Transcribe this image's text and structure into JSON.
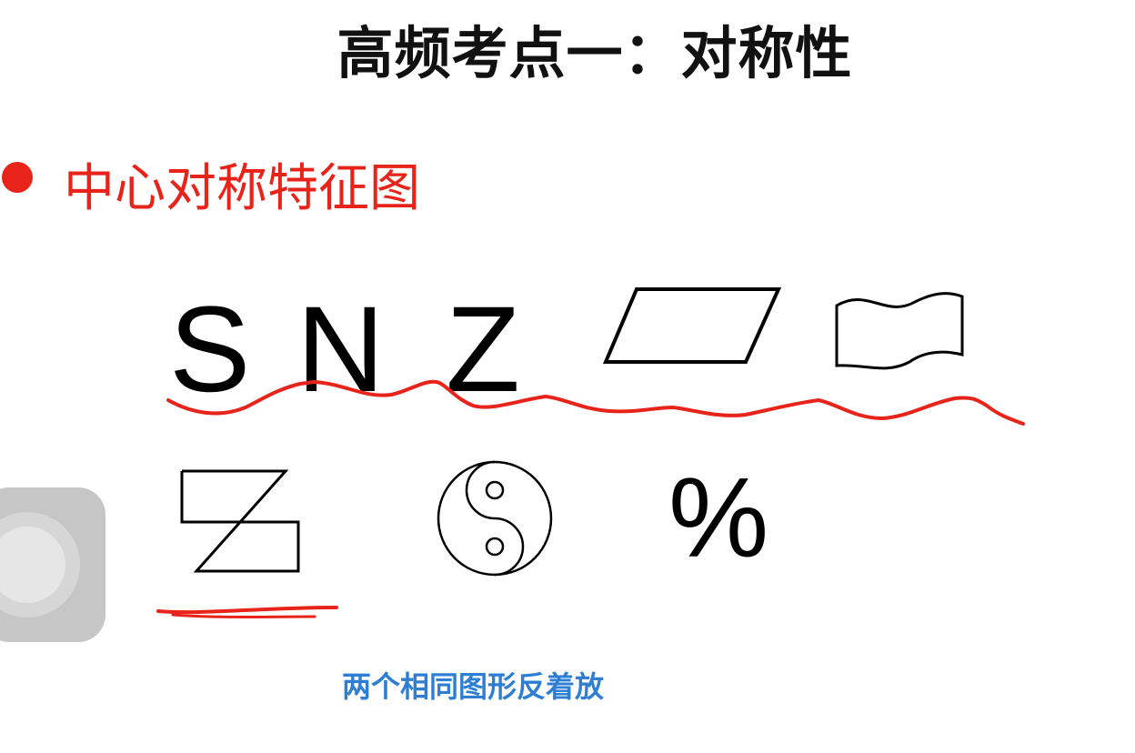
{
  "title": "高频考点一：对称性",
  "subtitle": "中心对称特征图",
  "letters": [
    "S",
    "N",
    "Z"
  ],
  "percent_sign": "%",
  "note": "两个相同图形反着放",
  "figures": [
    "parallelogram",
    "wavy-flag",
    "z-shape",
    "yin-yang"
  ],
  "colors": {
    "title": "#111111",
    "accent": "#e8231a",
    "note": "#2e7fd3",
    "annotation": "#e8231a"
  }
}
